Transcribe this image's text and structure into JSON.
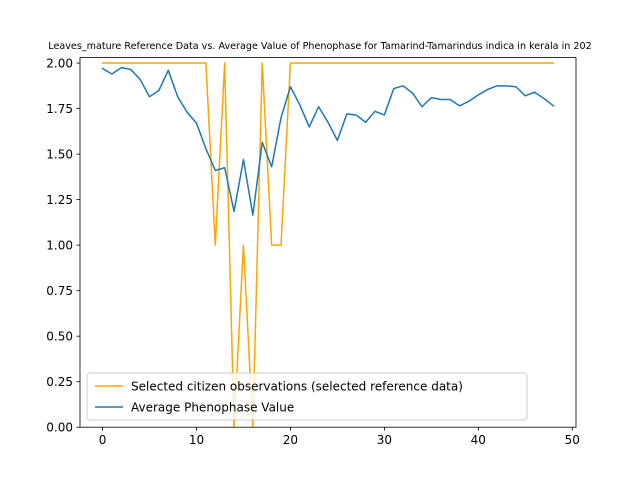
{
  "chart_data": {
    "type": "line",
    "title": "Leaves_mature Reference Data vs. Average Value of Phenophase for Tamarind-Tamarindus indica in kerala in 202",
    "xlabel": "",
    "ylabel": "",
    "xlim": [
      -2.4,
      50.4
    ],
    "ylim": [
      0.0,
      2.03
    ],
    "xticks": [
      0,
      10,
      20,
      30,
      40,
      50
    ],
    "yticks": [
      0.0,
      0.25,
      0.5,
      0.75,
      1.0,
      1.25,
      1.5,
      1.75,
      2.0
    ],
    "xtick_labels": [
      "0",
      "10",
      "20",
      "30",
      "40",
      "50"
    ],
    "ytick_labels": [
      "0.00",
      "0.25",
      "0.50",
      "0.75",
      "1.00",
      "1.25",
      "1.50",
      "1.75",
      "2.00"
    ],
    "grid": false,
    "legend_position": "lower-left",
    "series": [
      {
        "name": "Selected citizen observations (selected reference data)",
        "color": "#ffa500",
        "x": [
          0,
          1,
          2,
          3,
          4,
          5,
          6,
          7,
          8,
          9,
          10,
          11,
          12,
          13,
          14,
          15,
          16,
          17,
          18,
          19,
          20,
          21,
          22,
          23,
          24,
          25,
          26,
          27,
          28,
          29,
          30,
          31,
          32,
          33,
          34,
          35,
          36,
          37,
          38,
          39,
          40,
          41,
          42,
          43,
          44,
          45,
          46,
          47,
          48
        ],
        "values": [
          2,
          2,
          2,
          2,
          2,
          2,
          2,
          2,
          2,
          2,
          2,
          2,
          1,
          2,
          0,
          1,
          0,
          2,
          1,
          1,
          2,
          2,
          2,
          2,
          2,
          2,
          2,
          2,
          2,
          2,
          2,
          2,
          2,
          2,
          2,
          2,
          2,
          2,
          2,
          2,
          2,
          2,
          2,
          2,
          2,
          2,
          2,
          2,
          2
        ]
      },
      {
        "name": "Average Phenophase Value",
        "color": "#1f77b4",
        "x": [
          0,
          1,
          2,
          3,
          4,
          5,
          6,
          7,
          8,
          9,
          10,
          11,
          12,
          13,
          14,
          15,
          16,
          17,
          18,
          19,
          20,
          21,
          22,
          23,
          24,
          25,
          26,
          27,
          28,
          29,
          30,
          31,
          32,
          33,
          34,
          35,
          36,
          37,
          38,
          39,
          40,
          41,
          42,
          43,
          44,
          45,
          46,
          47,
          48
        ],
        "values": [
          1.97,
          1.94,
          1.975,
          1.965,
          1.91,
          1.815,
          1.85,
          1.96,
          1.815,
          1.73,
          1.67,
          1.53,
          1.41,
          1.425,
          1.185,
          1.47,
          1.165,
          1.565,
          1.43,
          1.7,
          1.87,
          1.77,
          1.65,
          1.76,
          1.675,
          1.575,
          1.72,
          1.715,
          1.675,
          1.735,
          1.715,
          1.86,
          1.875,
          1.835,
          1.76,
          1.81,
          1.8,
          1.8,
          1.765,
          1.79,
          1.825,
          1.855,
          1.875,
          1.875,
          1.87,
          1.82,
          1.84,
          1.805,
          1.765
        ]
      }
    ]
  }
}
